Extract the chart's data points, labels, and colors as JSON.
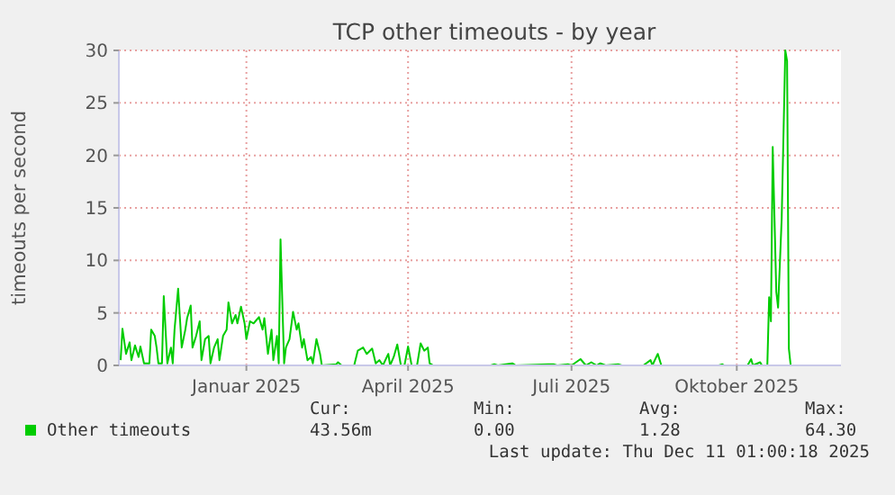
{
  "chart_data": {
    "type": "line",
    "title": "TCP other timeouts - by year",
    "ylabel": "timeouts per second",
    "xlim": [
      "2024-11-06",
      "2025-12-13"
    ],
    "xticks": [
      {
        "value": "2025-01-16",
        "label": "Januar 2025"
      },
      {
        "value": "2025-04-16",
        "label": "April 2025"
      },
      {
        "value": "2025-07-16",
        "label": "Juli 2025"
      },
      {
        "value": "2025-10-16",
        "label": "Oktober 2025"
      }
    ],
    "ylim": [
      0,
      30
    ],
    "yticks": [
      0,
      5,
      10,
      15,
      20,
      25,
      30
    ],
    "grid": true,
    "legend": "bottom",
    "marker": "none",
    "line_style": "solid",
    "x": [
      "2024-11-07",
      "2024-11-08",
      "2024-11-10",
      "2024-11-12",
      "2024-11-13",
      "2024-11-15",
      "2024-11-17",
      "2024-11-18",
      "2024-11-20",
      "2024-11-23",
      "2024-11-24",
      "2024-11-26",
      "2024-11-27",
      "2024-11-28",
      "2024-11-30",
      "2024-12-01",
      "2024-12-03",
      "2024-12-05",
      "2024-12-06",
      "2024-12-07",
      "2024-12-09",
      "2024-12-11",
      "2024-12-13",
      "2024-12-14",
      "2024-12-16",
      "2024-12-17",
      "2024-12-19",
      "2024-12-21",
      "2024-12-22",
      "2024-12-24",
      "2024-12-26",
      "2024-12-27",
      "2024-12-29",
      "2024-12-31",
      "2025-01-01",
      "2025-01-03",
      "2025-01-05",
      "2025-01-06",
      "2025-01-08",
      "2025-01-10",
      "2025-01-11",
      "2025-01-13",
      "2025-01-15",
      "2025-01-16",
      "2025-01-18",
      "2025-01-20",
      "2025-01-21",
      "2025-01-23",
      "2025-01-25",
      "2025-01-26",
      "2025-01-28",
      "2025-01-30",
      "2025-01-31",
      "2025-02-02",
      "2025-02-03",
      "2025-02-04",
      "2025-02-06",
      "2025-02-07",
      "2025-02-09",
      "2025-02-11",
      "2025-02-13",
      "2025-02-14",
      "2025-02-16",
      "2025-02-17",
      "2025-02-19",
      "2025-02-21",
      "2025-02-22",
      "2025-02-24",
      "2025-02-26",
      "2025-02-27",
      "2025-03-07",
      "2025-03-08",
      "2025-03-10",
      "2025-03-14",
      "2025-03-17",
      "2025-03-19",
      "2025-03-22",
      "2025-03-24",
      "2025-03-27",
      "2025-03-29",
      "2025-03-31",
      "2025-04-02",
      "2025-04-05",
      "2025-04-06",
      "2025-04-08",
      "2025-04-10",
      "2025-04-12",
      "2025-04-14",
      "2025-04-16",
      "2025-04-18",
      "2025-04-21",
      "2025-04-23",
      "2025-04-25",
      "2025-04-27",
      "2025-04-28",
      "2025-04-30",
      "2025-06-01",
      "2025-06-03",
      "2025-06-05",
      "2025-06-13",
      "2025-06-15",
      "2025-07-03",
      "2025-07-06",
      "2025-07-08",
      "2025-07-14",
      "2025-07-16",
      "2025-07-21",
      "2025-07-24",
      "2025-07-27",
      "2025-07-30",
      "2025-08-01",
      "2025-08-04",
      "2025-08-11",
      "2025-08-13",
      "2025-08-25",
      "2025-08-29",
      "2025-08-30",
      "2025-09-02",
      "2025-09-04",
      "2025-10-06",
      "2025-10-08",
      "2025-10-09",
      "2025-10-22",
      "2025-10-24",
      "2025-10-25",
      "2025-10-29",
      "2025-10-30",
      "2025-11-02",
      "2025-11-03",
      "2025-11-04",
      "2025-11-05",
      "2025-11-07",
      "2025-11-08",
      "2025-11-10",
      "2025-11-12",
      "2025-11-13",
      "2025-11-14",
      "2025-11-15",
      "2025-12-11"
    ],
    "series": [
      {
        "name": "Other timeouts",
        "color": "#00cc00",
        "values": [
          0.5,
          3.5,
          1.1,
          2.2,
          0.5,
          1.9,
          0.8,
          1.8,
          0.2,
          0.2,
          3.4,
          2.8,
          1.7,
          0.2,
          0.2,
          6.6,
          0.2,
          1.7,
          0.2,
          3.4,
          7.3,
          1.7,
          3.4,
          4.5,
          5.7,
          1.7,
          2.8,
          4.2,
          0.5,
          2.5,
          2.8,
          0.2,
          1.7,
          2.5,
          0.5,
          2.8,
          3.4,
          6.0,
          4.0,
          4.8,
          4.0,
          5.6,
          4.0,
          2.5,
          4.2,
          4.0,
          4.2,
          4.6,
          3.4,
          4.5,
          1.1,
          3.4,
          0.5,
          2.8,
          0.2,
          12.0,
          0.2,
          1.7,
          2.5,
          5.1,
          3.4,
          4.0,
          1.7,
          2.5,
          0.5,
          0.8,
          0.2,
          2.5,
          1.1,
          0,
          0.1,
          0.3,
          0,
          0,
          0,
          1.4,
          1.7,
          1.1,
          1.6,
          0.2,
          0.5,
          0,
          1.1,
          0,
          0.8,
          2.0,
          0,
          0,
          1.8,
          0,
          0,
          2.1,
          1.4,
          1.7,
          0.2,
          0,
          0,
          0.1,
          0,
          0.2,
          0,
          0.1,
          0.1,
          0,
          0.1,
          0,
          0.6,
          0,
          0.3,
          0,
          0.2,
          0,
          0.1,
          0,
          0,
          0.5,
          0,
          1.1,
          0,
          0,
          0.1,
          0,
          0,
          0.6,
          0,
          0.3,
          0,
          0,
          6.5,
          4.2,
          20.8,
          7.0,
          5.5,
          14,
          30,
          29,
          1.6,
          0,
          0
        ]
      }
    ],
    "annotations": [
      "Cur:",
      "43.56m",
      "Min:",
      "0.00",
      "Avg:",
      "1.28",
      "Max:",
      "64.30",
      "Last update: Thu Dec 11 01:00:18 2025"
    ]
  }
}
